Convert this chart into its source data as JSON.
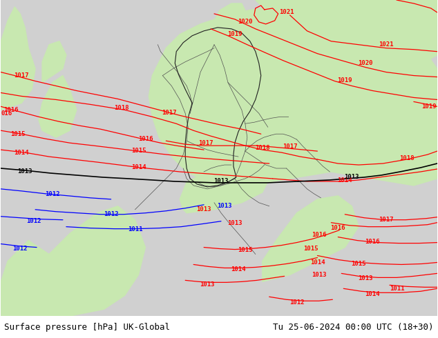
{
  "title_left": "Surface pressure [hPa] UK-Global",
  "title_right": "Tu 25-06-2024 00:00 UTC (18+30)",
  "footer_text_color": "#000000",
  "footer_fontsize": 9,
  "fig_width": 6.34,
  "fig_height": 4.9,
  "sea_color": "#d0d0d0",
  "land_color": "#c8e8b0",
  "land_dark": "#b8d8a0",
  "border_color": "#606060",
  "isobar_red": "#ff0000",
  "isobar_black": "#000000",
  "isobar_blue": "#0000ff",
  "isobar_gray": "#888888",
  "isobar_lw": 0.9,
  "label_fontsize": 6.5,
  "regions": {
    "sea_north": {
      "color": "#c8c8c8"
    },
    "land_green": {
      "color": "#c8e8b0"
    }
  }
}
